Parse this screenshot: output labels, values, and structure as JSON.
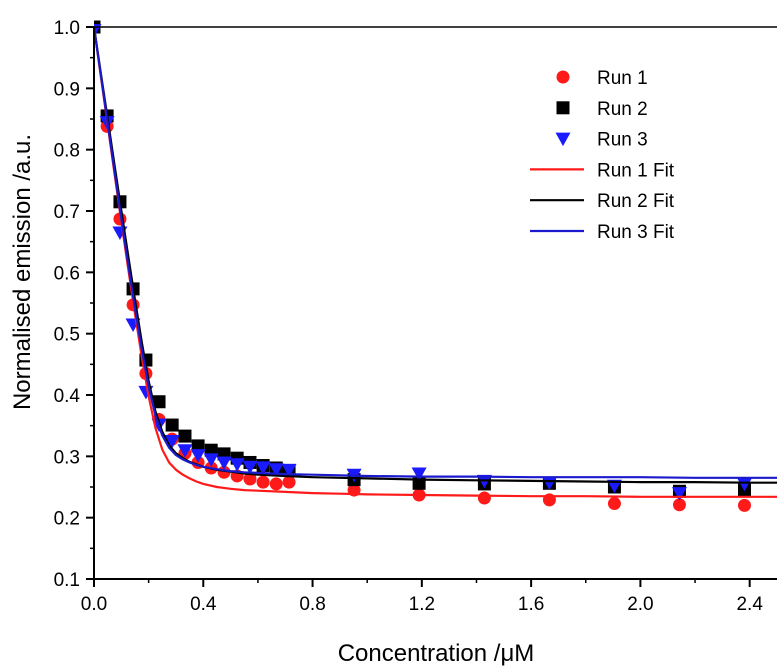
{
  "chart_data": {
    "type": "scatter",
    "xlabel": "Concentration /μM",
    "ylabel": "Normalised emission /a.u.",
    "xlim": [
      0,
      2.5
    ],
    "ylim": [
      0.1,
      1.0
    ],
    "xticks": [
      "0.0",
      "0.4",
      "0.8",
      "1.2",
      "1.6",
      "2.0",
      "2.4"
    ],
    "yticks": [
      "0.1",
      "0.2",
      "0.3",
      "0.4",
      "0.5",
      "0.6",
      "0.7",
      "0.8",
      "0.9",
      "1.0"
    ],
    "grid": false,
    "legend_position": "top-right",
    "series": [
      {
        "name": "Run 1",
        "kind": "points",
        "marker": "circle",
        "color": "#ff1a1a",
        "x": [
          0.0,
          0.048,
          0.095,
          0.143,
          0.19,
          0.238,
          0.286,
          0.333,
          0.381,
          0.429,
          0.476,
          0.524,
          0.571,
          0.619,
          0.667,
          0.714,
          0.952,
          1.19,
          1.429,
          1.667,
          1.905,
          2.143,
          2.381
        ],
        "y": [
          1.0,
          0.838,
          0.687,
          0.547,
          0.435,
          0.36,
          0.328,
          0.305,
          0.29,
          0.281,
          0.274,
          0.268,
          0.263,
          0.258,
          0.255,
          0.258,
          0.245,
          0.237,
          0.232,
          0.229,
          0.223,
          0.221,
          0.22
        ]
      },
      {
        "name": "Run 2",
        "kind": "points",
        "marker": "square",
        "color": "#000000",
        "x": [
          0.0,
          0.048,
          0.095,
          0.143,
          0.19,
          0.238,
          0.286,
          0.333,
          0.381,
          0.429,
          0.476,
          0.524,
          0.571,
          0.619,
          0.667,
          0.714,
          0.952,
          1.19,
          1.429,
          1.667,
          1.905,
          2.143,
          2.381
        ],
        "y": [
          1.0,
          0.855,
          0.715,
          0.573,
          0.457,
          0.389,
          0.351,
          0.333,
          0.317,
          0.31,
          0.304,
          0.297,
          0.29,
          0.285,
          0.281,
          0.277,
          0.262,
          0.256,
          0.255,
          0.256,
          0.25,
          0.243,
          0.245
        ]
      },
      {
        "name": "Run 3",
        "kind": "points",
        "marker": "triangle-down",
        "color": "#1a1aff",
        "x": [
          0.0,
          0.048,
          0.095,
          0.143,
          0.19,
          0.238,
          0.286,
          0.333,
          0.381,
          0.429,
          0.476,
          0.524,
          0.571,
          0.619,
          0.667,
          0.714,
          0.952,
          1.19,
          1.429,
          1.667,
          1.905,
          2.143,
          2.381
        ],
        "y": [
          0.995,
          0.845,
          0.665,
          0.515,
          0.405,
          0.352,
          0.325,
          0.31,
          0.302,
          0.295,
          0.29,
          0.287,
          0.283,
          0.282,
          0.279,
          0.278,
          0.27,
          0.272,
          0.26,
          0.257,
          0.252,
          0.24,
          0.255
        ]
      },
      {
        "name": "Run 1 Fit",
        "kind": "line",
        "color": "#ff1a1a",
        "x": [
          0.0,
          0.025,
          0.05,
          0.075,
          0.1,
          0.125,
          0.15,
          0.175,
          0.2,
          0.225,
          0.25,
          0.275,
          0.3,
          0.325,
          0.35,
          0.375,
          0.4,
          0.45,
          0.5,
          0.55,
          0.6,
          0.7,
          0.8,
          0.9,
          1.0,
          1.2,
          1.4,
          1.6,
          1.8,
          2.0,
          2.2,
          2.4,
          2.5
        ],
        "y": [
          1.0,
          0.92,
          0.84,
          0.761,
          0.683,
          0.606,
          0.532,
          0.462,
          0.398,
          0.346,
          0.311,
          0.29,
          0.278,
          0.27,
          0.264,
          0.259,
          0.255,
          0.25,
          0.247,
          0.245,
          0.244,
          0.242,
          0.24,
          0.239,
          0.238,
          0.237,
          0.236,
          0.235,
          0.235,
          0.234,
          0.234,
          0.234,
          0.234
        ]
      },
      {
        "name": "Run 2 Fit",
        "kind": "line",
        "color": "#000000",
        "x": [
          0.0,
          0.025,
          0.05,
          0.075,
          0.1,
          0.125,
          0.15,
          0.175,
          0.2,
          0.225,
          0.25,
          0.275,
          0.3,
          0.325,
          0.35,
          0.375,
          0.4,
          0.45,
          0.5,
          0.55,
          0.6,
          0.7,
          0.8,
          0.9,
          1.0,
          1.2,
          1.4,
          1.6,
          1.8,
          2.0,
          2.2,
          2.4,
          2.5
        ],
        "y": [
          1.0,
          0.925,
          0.85,
          0.775,
          0.701,
          0.627,
          0.555,
          0.486,
          0.423,
          0.373,
          0.34,
          0.318,
          0.305,
          0.297,
          0.291,
          0.287,
          0.283,
          0.278,
          0.275,
          0.272,
          0.27,
          0.268,
          0.266,
          0.265,
          0.264,
          0.262,
          0.261,
          0.26,
          0.259,
          0.258,
          0.258,
          0.257,
          0.257
        ]
      },
      {
        "name": "Run 3 Fit",
        "kind": "line",
        "color": "#1a1acc",
        "x": [
          0.0,
          0.025,
          0.05,
          0.075,
          0.1,
          0.125,
          0.15,
          0.175,
          0.2,
          0.225,
          0.25,
          0.275,
          0.3,
          0.325,
          0.35,
          0.375,
          0.4,
          0.45,
          0.5,
          0.55,
          0.6,
          0.7,
          0.8,
          0.9,
          1.0,
          1.2,
          1.4,
          1.6,
          1.8,
          2.0,
          2.2,
          2.4,
          2.5
        ],
        "y": [
          1.0,
          0.922,
          0.843,
          0.765,
          0.688,
          0.613,
          0.541,
          0.474,
          0.414,
          0.366,
          0.334,
          0.314,
          0.302,
          0.295,
          0.29,
          0.286,
          0.283,
          0.279,
          0.276,
          0.274,
          0.273,
          0.271,
          0.27,
          0.269,
          0.268,
          0.267,
          0.267,
          0.266,
          0.266,
          0.266,
          0.265,
          0.265,
          0.265
        ]
      }
    ]
  }
}
